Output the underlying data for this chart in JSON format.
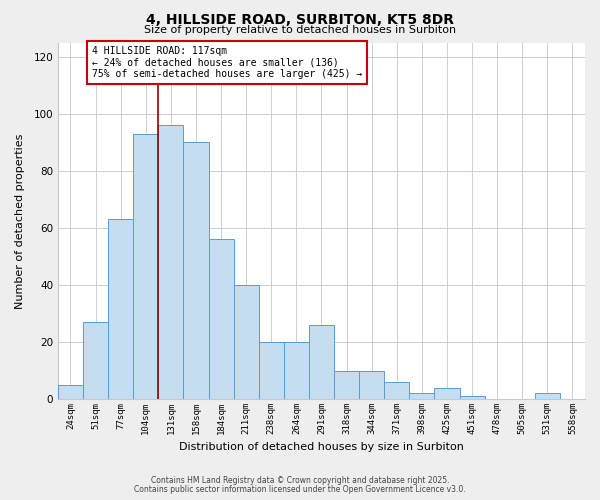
{
  "title": "4, HILLSIDE ROAD, SURBITON, KT5 8DR",
  "subtitle": "Size of property relative to detached houses in Surbiton",
  "xlabel": "Distribution of detached houses by size in Surbiton",
  "ylabel": "Number of detached properties",
  "bar_labels": [
    "24sqm",
    "51sqm",
    "77sqm",
    "104sqm",
    "131sqm",
    "158sqm",
    "184sqm",
    "211sqm",
    "238sqm",
    "264sqm",
    "291sqm",
    "318sqm",
    "344sqm",
    "371sqm",
    "398sqm",
    "425sqm",
    "451sqm",
    "478sqm",
    "505sqm",
    "531sqm",
    "558sqm"
  ],
  "bar_values": [
    5,
    27,
    63,
    93,
    96,
    90,
    56,
    40,
    20,
    20,
    26,
    10,
    10,
    6,
    2,
    4,
    1,
    0,
    0,
    2,
    0
  ],
  "bar_color": "#c5ddf0",
  "bar_edge_color": "#5b9bd5",
  "ylim": [
    0,
    125
  ],
  "yticks": [
    0,
    20,
    40,
    60,
    80,
    100,
    120
  ],
  "annotation_title": "4 HILLSIDE ROAD: 117sqm",
  "annotation_line1": "← 24% of detached houses are smaller (136)",
  "annotation_line2": "75% of semi-detached houses are larger (425) →",
  "vline_x": 3.5,
  "vline_color": "#990000",
  "footer1": "Contains HM Land Registry data © Crown copyright and database right 2025.",
  "footer2": "Contains public sector information licensed under the Open Government Licence v3.0.",
  "background_color": "#eeeeee",
  "plot_background": "#ffffff",
  "grid_color": "#c0c8d0"
}
